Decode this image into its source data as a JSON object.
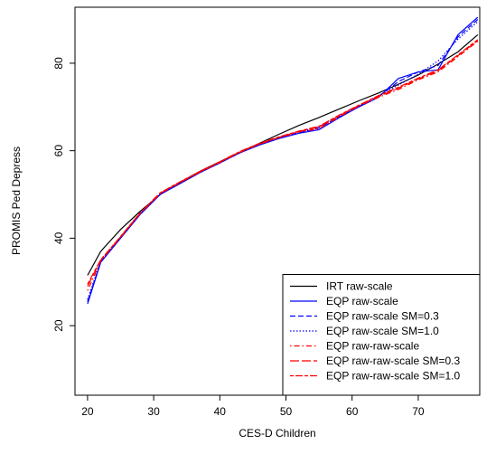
{
  "chart_data": {
    "type": "line",
    "x_label": "CES-D Children",
    "y_label": "PROMIS Ped Depress",
    "x": [
      20,
      22,
      25,
      28,
      31,
      34,
      37,
      40,
      43,
      46,
      49,
      52,
      55,
      58,
      61,
      64,
      67,
      70,
      73,
      76,
      79
    ],
    "xlim": [
      18.1,
      79.3
    ],
    "ylim": [
      4.1,
      92.8
    ],
    "xticks": [
      20,
      30,
      40,
      50,
      60,
      70
    ],
    "yticks": [
      20,
      40,
      60,
      80
    ],
    "legend": "bottom-right",
    "series": [
      {
        "name": "IRT raw-scale",
        "color": "#000000",
        "dash": "solid",
        "values": [
          31.5,
          37,
          42,
          46.2,
          50,
          52.8,
          55.3,
          57.5,
          59.6,
          61.7,
          63.8,
          65.8,
          67.6,
          69.5,
          71.4,
          73.2,
          75.2,
          77.3,
          79.8,
          82.6,
          86.5
        ]
      },
      {
        "name": "EQP raw-scale",
        "color": "#0000ff",
        "dash": "solid",
        "values": [
          25,
          34.5,
          40,
          45.5,
          50,
          52.5,
          55,
          57.2,
          59.5,
          61.3,
          62.8,
          64,
          64.8,
          67.5,
          70,
          72.2,
          76.5,
          78,
          78.5,
          86.5,
          90.5
        ]
      },
      {
        "name": "EQP raw-scale SM=0.3",
        "color": "#0000ff",
        "dash": "dashed",
        "values": [
          25.5,
          34.6,
          40.1,
          45.6,
          50.1,
          52.6,
          55.1,
          57.2,
          59.5,
          61.4,
          62.9,
          64.1,
          65.2,
          67.7,
          70.1,
          72.4,
          75.8,
          78,
          79.5,
          86,
          90
        ]
      },
      {
        "name": "EQP raw-scale SM=1.0",
        "color": "#0000ff",
        "dash": "dotted",
        "values": [
          26,
          34.8,
          40.3,
          45.7,
          50.2,
          52.7,
          55.2,
          57.3,
          59.6,
          61.5,
          63,
          64.3,
          65.5,
          68,
          70.3,
          72.6,
          75,
          77.5,
          80.5,
          85.5,
          89.5
        ]
      },
      {
        "name": "EQP raw-raw-scale",
        "color": "#ff0000",
        "dash": "dotdash",
        "values": [
          28,
          34.8,
          40.2,
          45.7,
          50.2,
          52.7,
          55.1,
          57.3,
          59.6,
          61.5,
          63,
          64.3,
          65,
          67.7,
          70.2,
          72.2,
          74,
          76.2,
          78,
          81.5,
          85
        ]
      },
      {
        "name": "EQP raw-raw-scale SM=0.3",
        "color": "#ff0000",
        "dash": "longdash",
        "values": [
          29,
          35,
          40.3,
          45.8,
          50.3,
          52.8,
          55.2,
          57.4,
          59.7,
          61.6,
          63.1,
          64.4,
          65.4,
          67.9,
          70.3,
          72.4,
          74.3,
          76.4,
          78.3,
          81.7,
          85.2
        ]
      },
      {
        "name": "EQP raw-raw-scale SM=1.0",
        "color": "#ff0000",
        "dash": "twodash",
        "values": [
          29.5,
          35.1,
          40.4,
          45.9,
          50.4,
          52.9,
          55.3,
          57.5,
          59.8,
          61.7,
          63.2,
          64.5,
          65.6,
          68.1,
          70.4,
          72.6,
          74.5,
          76.6,
          78.5,
          81.9,
          85.4
        ]
      }
    ]
  }
}
